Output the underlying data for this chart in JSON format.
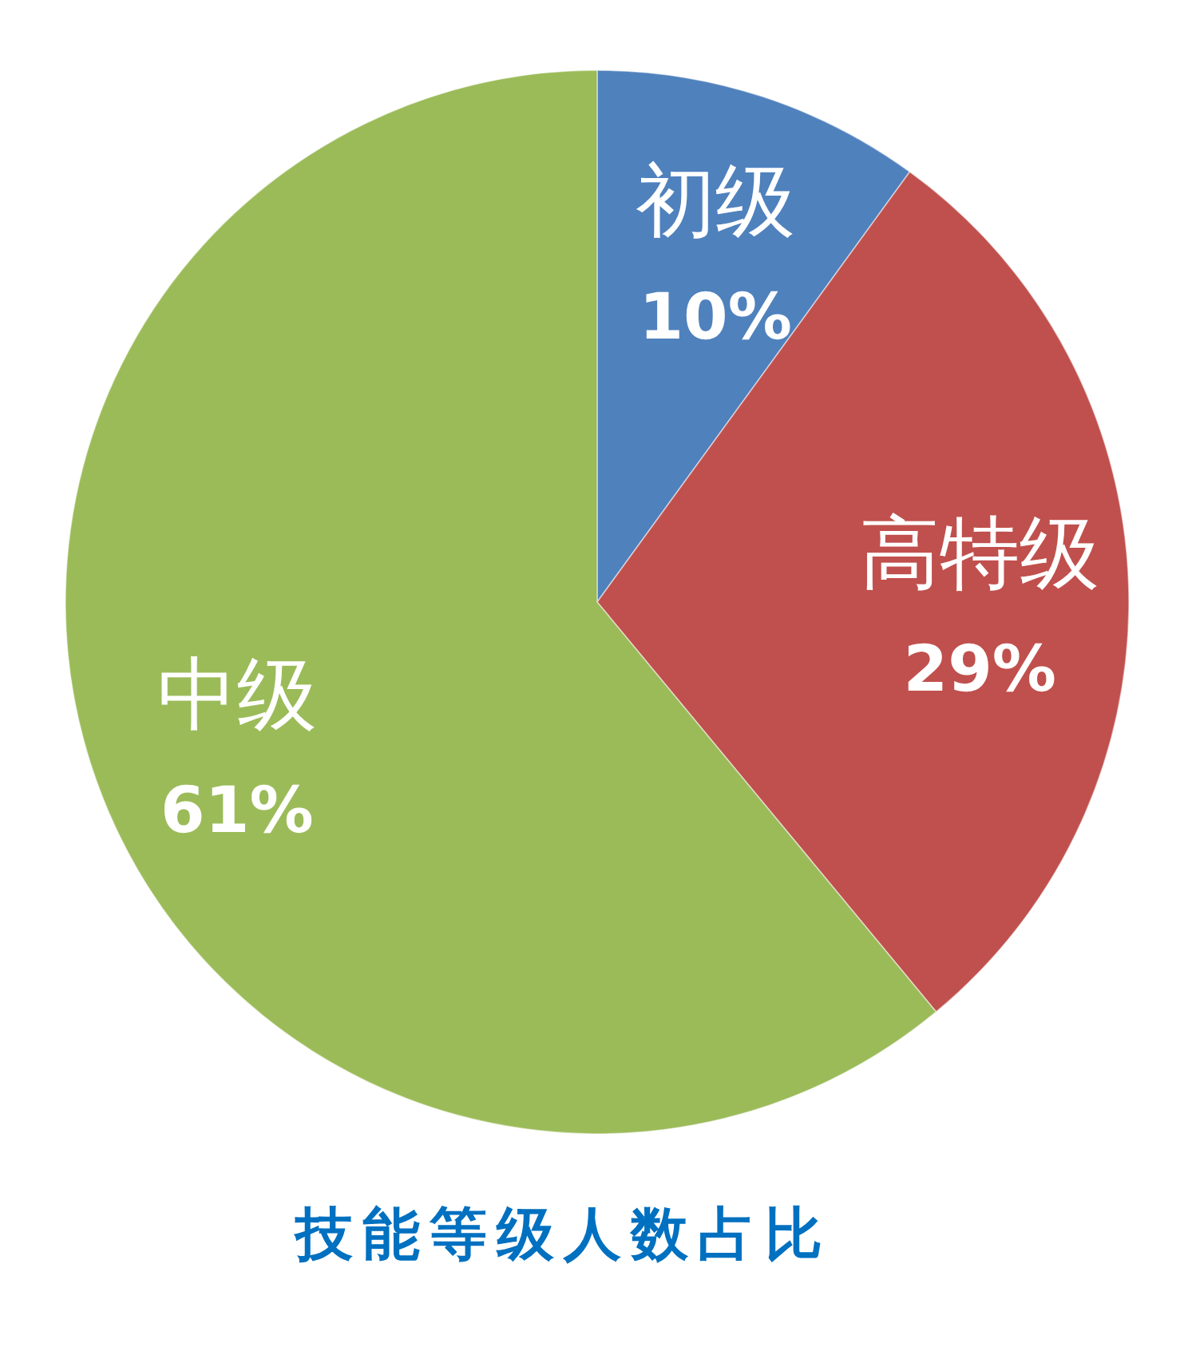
{
  "chart_data": {
    "type": "pie",
    "title": "技能等级人数占比",
    "categories": [
      "初级",
      "高特级",
      "中级"
    ],
    "values": [
      10,
      29,
      61
    ],
    "colors": [
      "#4f81bd",
      "#c0504d",
      "#9bbb59"
    ],
    "value_labels": [
      "10%",
      "29%",
      "61%"
    ]
  }
}
